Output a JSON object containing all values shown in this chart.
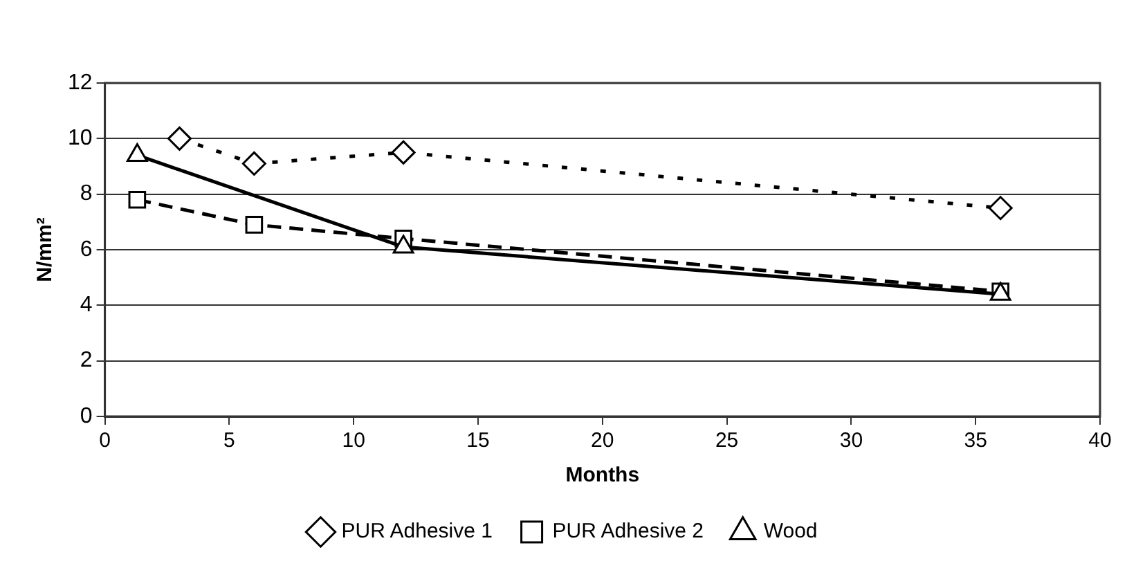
{
  "chart_data": {
    "type": "line",
    "xlabel": "Months",
    "ylabel": "N/mm²",
    "xlim": [
      0,
      40
    ],
    "xticks": [
      0,
      5,
      10,
      15,
      20,
      25,
      30,
      35,
      40
    ],
    "ylim": [
      0,
      12
    ],
    "yticks": [
      0,
      2,
      4,
      6,
      8,
      10,
      12
    ],
    "grid": "y",
    "legend": "bottom",
    "series": [
      {
        "name": "PUR Adhesive 1",
        "color": "#000000",
        "marker": "diamond",
        "line_style": "dotted",
        "x": [
          3,
          6,
          12,
          36
        ],
        "values": [
          10,
          9.1,
          9.5,
          7.5
        ]
      },
      {
        "name": "PUR Adhesive 2",
        "color": "#000000",
        "marker": "square",
        "line_style": "dashed",
        "x": [
          1.3,
          6,
          12,
          36
        ],
        "values": [
          7.8,
          6.9,
          6.4,
          4.5
        ]
      },
      {
        "name": "Wood",
        "color": "#000000",
        "marker": "triangle",
        "line_style": "solid",
        "x": [
          1.3,
          12,
          36
        ],
        "values": [
          9.4,
          6.1,
          4.4
        ]
      }
    ]
  }
}
